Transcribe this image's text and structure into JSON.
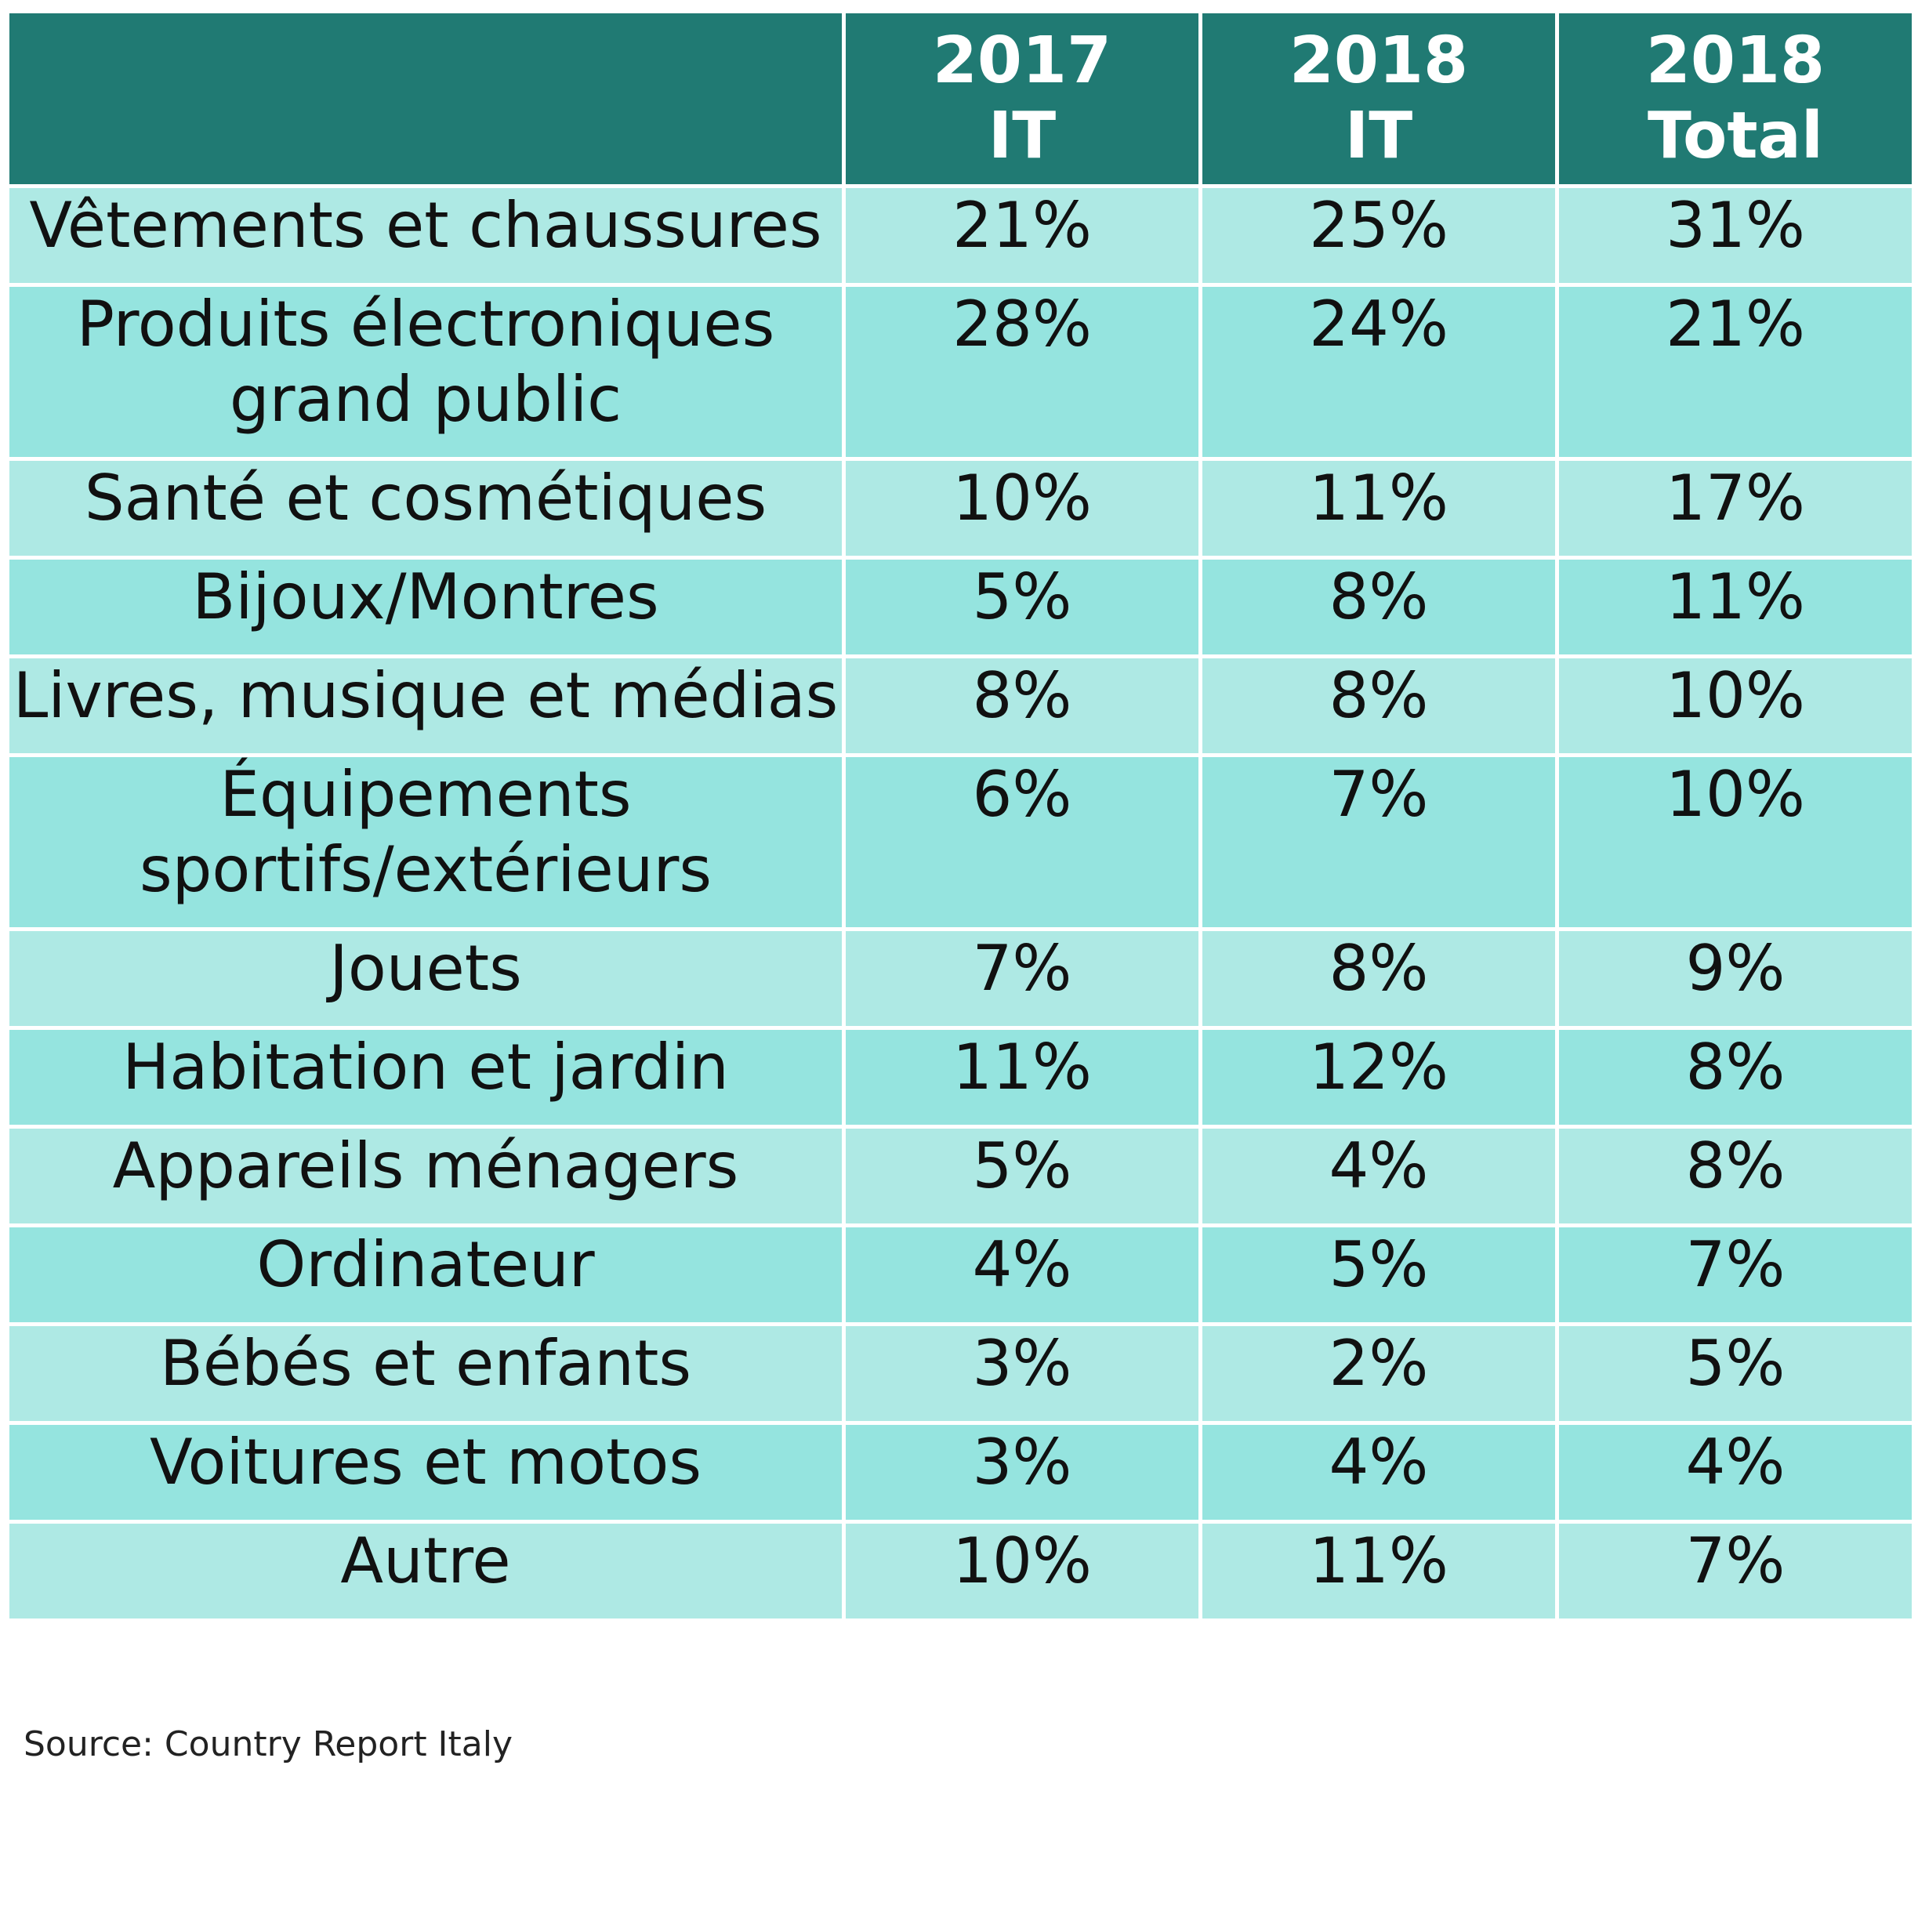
{
  "chart_data": {
    "type": "table",
    "columns": [
      {
        "line1": "2017",
        "line2": "IT"
      },
      {
        "line1": "2018",
        "line2": "IT"
      },
      {
        "line1": "2018",
        "line2": "Total"
      }
    ],
    "rows": [
      {
        "label": "Vêtements et chaussures",
        "values": [
          "21%",
          "25%",
          "31%"
        ]
      },
      {
        "label": "Produits électroniques grand public",
        "values": [
          "28%",
          "24%",
          "21%"
        ]
      },
      {
        "label": "Santé et cosmétiques",
        "values": [
          "10%",
          "11%",
          "17%"
        ]
      },
      {
        "label": "Bijoux/Montres",
        "values": [
          "5%",
          "8%",
          "11%"
        ]
      },
      {
        "label": "Livres, musique et médias",
        "values": [
          "8%",
          "8%",
          "10%"
        ]
      },
      {
        "label": "Équipements sportifs/extérieurs",
        "values": [
          "6%",
          "7%",
          "10%"
        ]
      },
      {
        "label": "Jouets",
        "values": [
          "7%",
          "8%",
          "9%"
        ]
      },
      {
        "label": "Habitation et jardin",
        "values": [
          "11%",
          "12%",
          "8%"
        ]
      },
      {
        "label": "Appareils ménagers",
        "values": [
          "5%",
          "4%",
          "8%"
        ]
      },
      {
        "label": "Ordinateur",
        "values": [
          "4%",
          "5%",
          "7%"
        ]
      },
      {
        "label": "Bébés et enfants",
        "values": [
          "3%",
          "2%",
          "5%"
        ]
      },
      {
        "label": "Voitures et motos",
        "values": [
          "3%",
          "4%",
          "4%"
        ]
      },
      {
        "label": "Autre",
        "values": [
          "10%",
          "11%",
          "7%"
        ]
      }
    ],
    "source": "Source: Country Report Italy"
  },
  "colors": {
    "header_bg": "#207a73",
    "row_light": "#aee9e4",
    "row_dark": "#95e4df",
    "header_text": "#ffffff"
  }
}
